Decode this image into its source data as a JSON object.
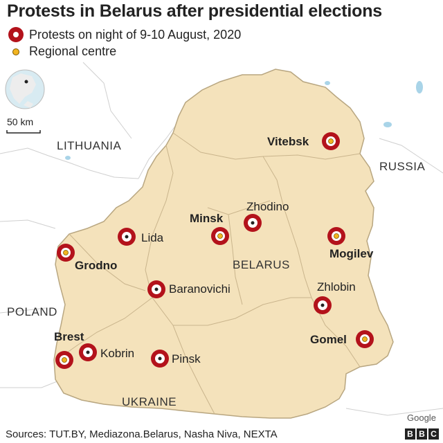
{
  "title": "Protests in Belarus after presidential elections",
  "legend": {
    "protest_label": "Protests on night of 9-10 August, 2020",
    "centre_label": "Regional centre"
  },
  "scale_label": "50 km",
  "countries": {
    "lithuania": "LITHUANIA",
    "russia": "RUSSIA",
    "poland": "POLAND",
    "ukraine": "UKRAINE",
    "belarus": "BELARUS"
  },
  "cities": [
    {
      "name": "Vitebsk",
      "regional_centre": true,
      "protest": true
    },
    {
      "name": "Zhodino",
      "regional_centre": false,
      "protest": true
    },
    {
      "name": "Minsk",
      "regional_centre": true,
      "protest": true
    },
    {
      "name": "Lida",
      "regional_centre": false,
      "protest": true
    },
    {
      "name": "Grodno",
      "regional_centre": true,
      "protest": true
    },
    {
      "name": "Mogilev",
      "regional_centre": true,
      "protest": true
    },
    {
      "name": "Baranovichi",
      "regional_centre": false,
      "protest": true
    },
    {
      "name": "Zhlobin",
      "regional_centre": false,
      "protest": true
    },
    {
      "name": "Brest",
      "regional_centre": true,
      "protest": true
    },
    {
      "name": "Kobrin",
      "regional_centre": false,
      "protest": true
    },
    {
      "name": "Gomel",
      "regional_centre": true,
      "protest": true
    },
    {
      "name": "Pinsk",
      "regional_centre": false,
      "protest": true
    }
  ],
  "colors": {
    "belarus_fill": "#f4e2bb",
    "protest_red": "#b3121b",
    "regional_dot": "#f2b420",
    "water": "#a9d4e8"
  },
  "sources": "Sources: TUT.BY, Mediazona.Belarus, Nasha Niva, NEXTA",
  "attribution": "Google",
  "brand": [
    "B",
    "B",
    "C"
  ]
}
